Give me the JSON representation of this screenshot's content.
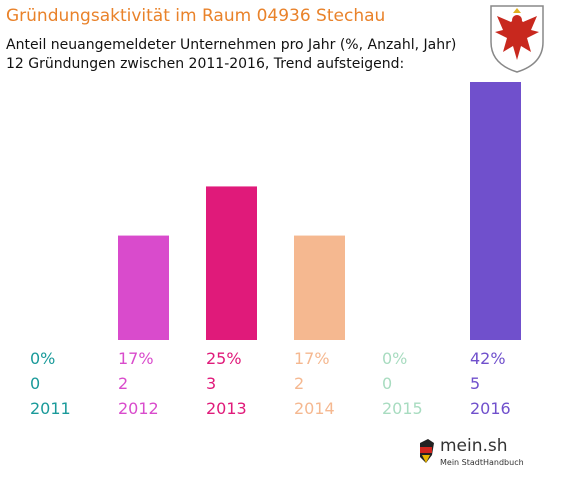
{
  "title": "Gründungsaktivität im Raum 04936 Stechau",
  "subtitle_line1": "Anteil neuangemeldeter Unternehmen pro Jahr (%, Anzahl, Jahr)",
  "subtitle_line2": "12 Gründungen zwischen 2011-2016, Trend aufsteigend:",
  "logo": {
    "text": "mein.sh",
    "sub": "Mein StadtHandbuch"
  },
  "chart_data": {
    "type": "bar",
    "categories": [
      "2011",
      "2012",
      "2013",
      "2014",
      "2015",
      "2016"
    ],
    "percent_labels": [
      "0%",
      "17%",
      "25%",
      "17%",
      "0%",
      "42%"
    ],
    "count_labels": [
      "0",
      "2",
      "3",
      "2",
      "0",
      "5"
    ],
    "values": [
      0,
      17,
      25,
      17,
      0,
      42
    ],
    "colors": [
      "#1a9a9a",
      "#d94bcc",
      "#e01a7a",
      "#f5b890",
      "#a8dcc0",
      "#7050cc"
    ],
    "ylim": [
      0,
      42
    ]
  }
}
